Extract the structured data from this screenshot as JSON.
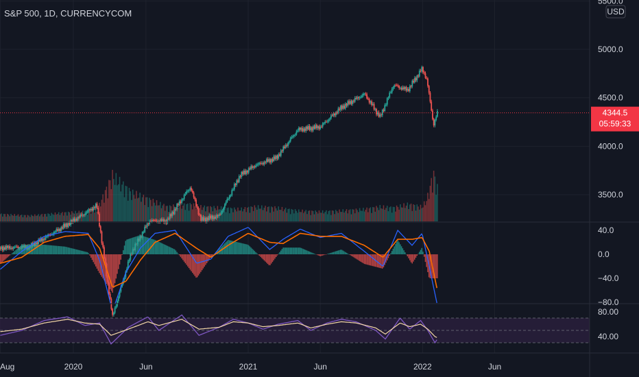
{
  "header": {
    "symbol_title": "S&P 500, 1D, CURRENCYCOM"
  },
  "currency_badge": "USD",
  "last_price": {
    "value": "4344.5",
    "countdown": "05:59:33",
    "color": "#f23645"
  },
  "colors": {
    "background": "#131722",
    "grid": "#1e222d",
    "up": "#26a69a",
    "down": "#ef5350",
    "macd_line": "#2962ff",
    "signal_line": "#ff6d00",
    "rsi_line": "#7e57c2",
    "rsi_ma": "#f5d9a8",
    "rsi_band": "#2a1f3d"
  },
  "chart_data": [
    {
      "type": "line",
      "subtype": "candlestick",
      "name": "S&P 500",
      "price_axis_labels": [
        "5500.0",
        "5000.0",
        "4500.0",
        "4000.0",
        "3500.0"
      ],
      "price_axis_values": [
        5500,
        5000,
        4500,
        4000,
        3500
      ],
      "time_axis_labels": [
        "Aug",
        "2020",
        "Jun",
        "2021",
        "Jun",
        "2022",
        "Jun"
      ],
      "last_value": 4344.5,
      "path_dates": [
        "2019-08-01",
        "2019-10-01",
        "2019-12-15",
        "2020-01-20",
        "2020-02-19",
        "2020-03-23",
        "2020-05-01",
        "2020-06-08",
        "2020-07-15",
        "2020-09-02",
        "2020-09-24",
        "2020-11-01",
        "2020-12-15",
        "2021-01-15",
        "2021-03-01",
        "2021-04-15",
        "2021-06-01",
        "2021-07-15",
        "2021-09-02",
        "2021-10-04",
        "2021-11-01",
        "2021-12-01",
        "2021-12-31",
        "2022-01-10",
        "2022-01-24",
        "2022-02-01"
      ],
      "path_values": [
        2950,
        2960,
        3180,
        3290,
        3390,
        2240,
        2900,
        3230,
        3230,
        3580,
        3240,
        3280,
        3700,
        3800,
        3880,
        4170,
        4200,
        4400,
        4540,
        4300,
        4630,
        4580,
        4800,
        4690,
        4220,
        4344.5
      ],
      "volume_relative": [
        0.15,
        0.12,
        0.18,
        0.2,
        0.22,
        0.95,
        0.6,
        0.45,
        0.3,
        0.35,
        0.3,
        0.28,
        0.25,
        0.3,
        0.28,
        0.22,
        0.2,
        0.22,
        0.25,
        0.3,
        0.28,
        0.35,
        0.3,
        0.45,
        1.0,
        0.7
      ]
    },
    {
      "type": "line",
      "subtype": "macd",
      "axis_labels": [
        "40.0",
        "0.0",
        "−40.0",
        "−80.0"
      ],
      "axis_values": [
        40,
        0,
        -40,
        -80
      ],
      "x_dates": [
        "2019-08-01",
        "2019-09-15",
        "2019-11-01",
        "2019-12-15",
        "2020-02-01",
        "2020-02-25",
        "2020-03-23",
        "2020-04-20",
        "2020-05-20",
        "2020-06-20",
        "2020-08-01",
        "2020-09-15",
        "2020-10-15",
        "2020-11-20",
        "2021-01-01",
        "2021-02-15",
        "2021-03-15",
        "2021-04-20",
        "2021-06-01",
        "2021-07-15",
        "2021-09-01",
        "2021-10-10",
        "2021-11-10",
        "2021-12-10",
        "2021-12-31",
        "2022-01-15",
        "2022-02-01"
      ],
      "macd": [
        -25,
        5,
        30,
        38,
        35,
        -10,
        -95,
        -30,
        10,
        35,
        40,
        -15,
        -8,
        30,
        45,
        8,
        25,
        42,
        28,
        35,
        5,
        -20,
        40,
        15,
        35,
        -20,
        -85
      ],
      "signal": [
        -15,
        -5,
        20,
        30,
        33,
        10,
        -55,
        -45,
        -10,
        20,
        35,
        10,
        -5,
        15,
        35,
        20,
        18,
        35,
        30,
        30,
        15,
        -5,
        25,
        25,
        28,
        5,
        -60
      ]
    },
    {
      "type": "line",
      "subtype": "rsi",
      "axis_labels": [
        "80.00",
        "40.00"
      ],
      "axis_values": [
        80,
        40
      ],
      "band": [
        30,
        70
      ],
      "x_dates": [
        "2019-08-01",
        "2019-09-15",
        "2019-11-01",
        "2019-12-20",
        "2020-01-25",
        "2020-02-25",
        "2020-03-20",
        "2020-04-25",
        "2020-06-05",
        "2020-06-28",
        "2020-08-15",
        "2020-09-20",
        "2020-11-01",
        "2020-12-01",
        "2021-01-01",
        "2021-02-01",
        "2021-03-05",
        "2021-04-15",
        "2021-05-12",
        "2021-06-15",
        "2021-07-15",
        "2021-08-15",
        "2021-09-25",
        "2021-10-15",
        "2021-11-15",
        "2021-12-05",
        "2021-12-28",
        "2022-01-12",
        "2022-01-27",
        "2022-02-01"
      ],
      "rsi": [
        42,
        50,
        66,
        72,
        58,
        62,
        28,
        55,
        72,
        50,
        75,
        42,
        55,
        68,
        62,
        52,
        60,
        66,
        50,
        62,
        68,
        64,
        50,
        36,
        70,
        52,
        66,
        50,
        30,
        36
      ],
      "rsi_ma": [
        48,
        52,
        62,
        68,
        62,
        60,
        42,
        52,
        64,
        58,
        68,
        52,
        55,
        64,
        62,
        56,
        58,
        62,
        54,
        60,
        64,
        62,
        54,
        44,
        62,
        56,
        60,
        52,
        40,
        38
      ]
    }
  ]
}
